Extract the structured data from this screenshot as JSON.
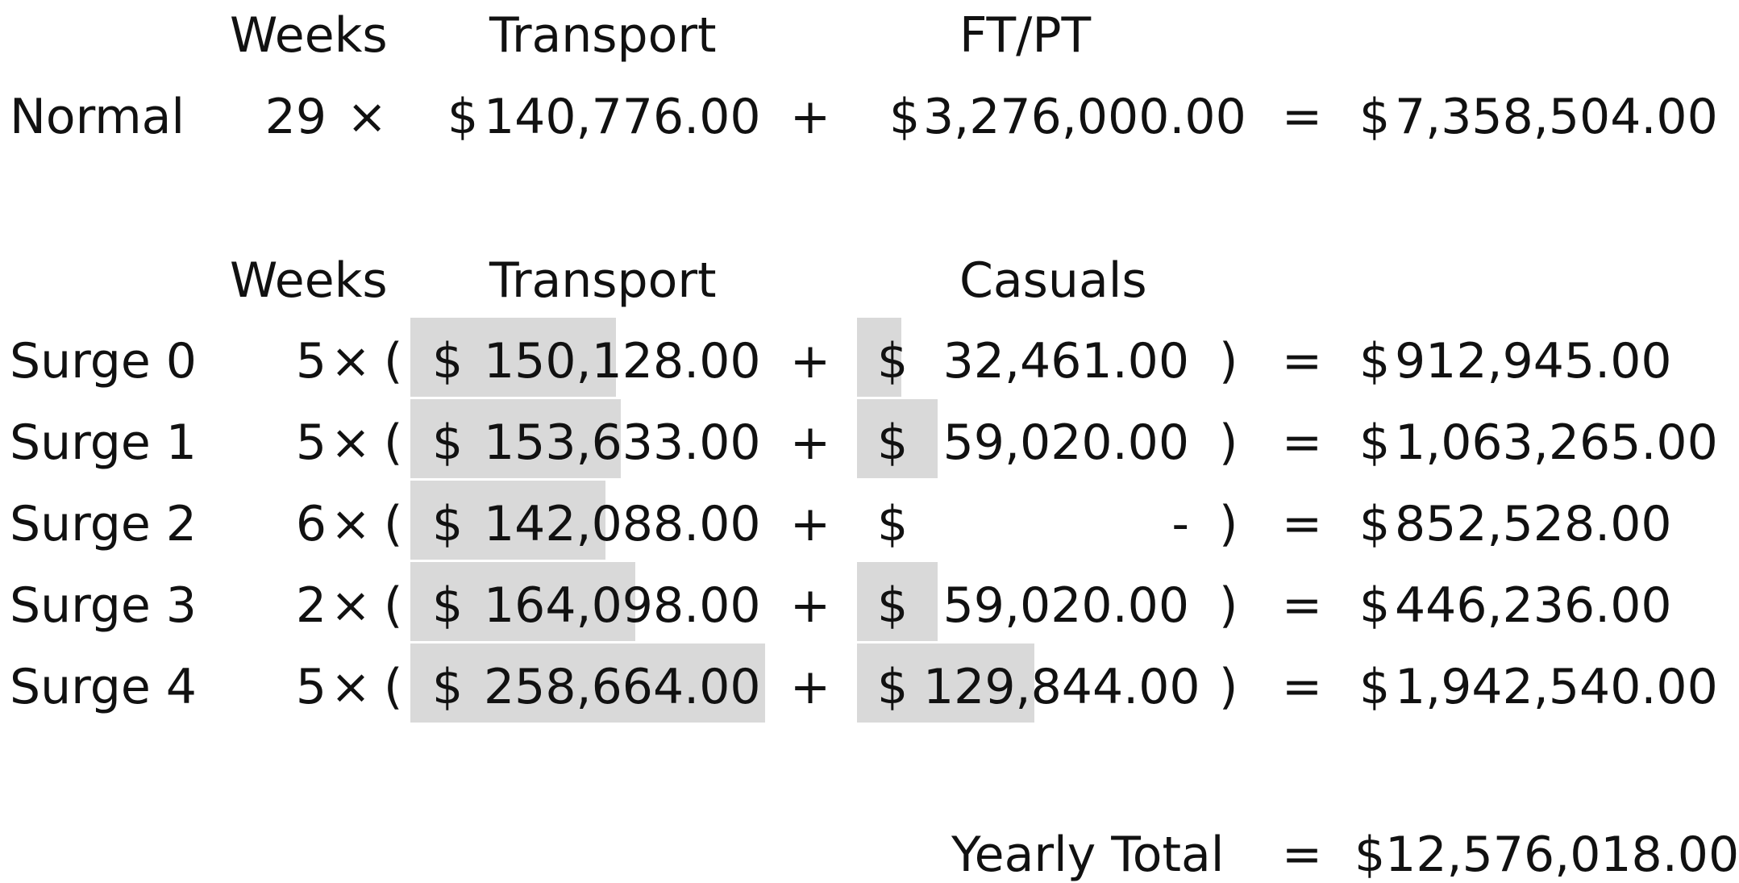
{
  "normal_section": {
    "headers": {
      "weeks": "Weeks",
      "transport": "Transport",
      "staff": "FT/PT"
    },
    "row": {
      "label": "Normal",
      "weeks": "29",
      "times": "×",
      "transport_currency": "$",
      "transport": "140,776.00",
      "plus": "+",
      "staff_currency": "$",
      "staff": "3,276,000.00",
      "equals": "=",
      "total_currency": "$",
      "total": "7,358,504.00"
    }
  },
  "surge_section": {
    "headers": {
      "weeks": "Weeks",
      "transport": "Transport",
      "casuals": "Casuals"
    },
    "rows": [
      {
        "label": "Surge 0",
        "weeks": "5",
        "times": "×",
        "open_paren": "(",
        "transport_currency": "$",
        "transport": "150,128.00",
        "transport_value": 150128,
        "plus": "+",
        "casuals_currency": "$",
        "casuals": "32,461.00",
        "casuals_value": 32461,
        "close_paren": ")",
        "equals": "=",
        "total_currency": "$",
        "total": "912,945.00"
      },
      {
        "label": "Surge 1",
        "weeks": "5",
        "times": "×",
        "open_paren": "(",
        "transport_currency": "$",
        "transport": "153,633.00",
        "transport_value": 153633,
        "plus": "+",
        "casuals_currency": "$",
        "casuals": "59,020.00",
        "casuals_value": 59020,
        "close_paren": ")",
        "equals": "=",
        "total_currency": "$",
        "total": "1,063,265.00"
      },
      {
        "label": "Surge 2",
        "weeks": "6",
        "times": "×",
        "open_paren": "(",
        "transport_currency": "$",
        "transport": "142,088.00",
        "transport_value": 142088,
        "plus": "+",
        "casuals_currency": "$",
        "casuals": "-",
        "casuals_value": 0,
        "close_paren": ")",
        "equals": "=",
        "total_currency": "$",
        "total": "852,528.00"
      },
      {
        "label": "Surge 3",
        "weeks": "2",
        "times": "×",
        "open_paren": "(",
        "transport_currency": "$",
        "transport": "164,098.00",
        "transport_value": 164098,
        "plus": "+",
        "casuals_currency": "$",
        "casuals": "59,020.00",
        "casuals_value": 59020,
        "close_paren": ")",
        "equals": "=",
        "total_currency": "$",
        "total": "446,236.00"
      },
      {
        "label": "Surge 4",
        "weeks": "5",
        "times": "×",
        "open_paren": "(",
        "transport_currency": "$",
        "transport": "258,664.00",
        "transport_value": 258664,
        "plus": "+",
        "casuals_currency": "$",
        "casuals": "129,844.00",
        "casuals_value": 129844,
        "close_paren": ")",
        "equals": "=",
        "total_currency": "$",
        "total": "1,942,540.00"
      }
    ]
  },
  "yearly": {
    "label": "Yearly Total",
    "equals": "=",
    "total": "$12,576,018.00"
  }
}
